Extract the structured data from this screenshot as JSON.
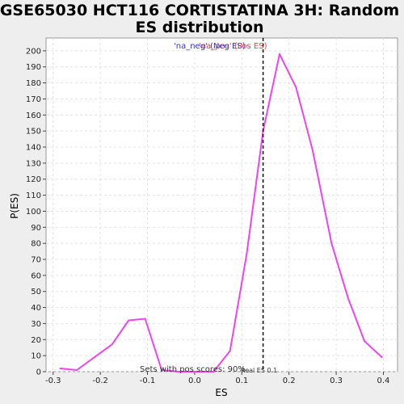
{
  "chart_data": {
    "type": "line",
    "title": "GSE65030 HCT116 CORTISTATINA 3H: Random ES distribution",
    "title_lines": [
      "GSE65030 HCT116 CORTISTATINA 3H: Random",
      "ES distribution"
    ],
    "xlabel": "ES",
    "ylabel": "P(ES)",
    "xlim": [
      -0.315,
      0.43
    ],
    "ylim": [
      0,
      208
    ],
    "x_ticks": [
      -0.3,
      -0.2,
      -0.1,
      0.0,
      0.1,
      0.2,
      0.3,
      0.4
    ],
    "x_tick_labels": [
      "-0.3",
      "-0.2",
      "-0.1",
      "0.0",
      "0.1",
      "0.2",
      "0.3",
      "0.4"
    ],
    "y_ticks": [
      0,
      10,
      20,
      30,
      40,
      50,
      60,
      70,
      80,
      90,
      100,
      110,
      120,
      130,
      140,
      150,
      160,
      170,
      180,
      190,
      200
    ],
    "y_tick_labels": [
      "0",
      "10",
      "20",
      "30",
      "40",
      "50",
      "60",
      "70",
      "80",
      "90",
      "100",
      "110",
      "120",
      "130",
      "140",
      "150",
      "160",
      "170",
      "180",
      "190",
      "200"
    ],
    "grid": true,
    "legend": {
      "placement": "top-center",
      "entries": [
        {
          "label": "'na_neg' (Neg ES)",
          "color": "#3333cc"
        },
        {
          "label": "'na_pos' (Pos ES)",
          "color": "#e64040"
        }
      ]
    },
    "series": [
      {
        "color": "#ee44ee",
        "x": [
          -0.285,
          -0.25,
          -0.175,
          -0.14,
          -0.105,
          -0.07,
          -0.035,
          0.0,
          0.04,
          0.075,
          0.11,
          0.145,
          0.18,
          0.215,
          0.25,
          0.29,
          0.325,
          0.36,
          0.397
        ],
        "y": [
          2,
          1,
          17,
          32,
          33,
          1,
          0,
          0,
          0,
          13,
          73,
          150,
          198,
          177,
          138,
          80,
          46,
          19,
          9
        ]
      }
    ],
    "vline": {
      "x": 0.145,
      "style": "dashed",
      "color": "#000000"
    },
    "annotations": {
      "sets_text": "Sets with pos scores: 90%",
      "real_text": "Real ES 0.1"
    }
  }
}
